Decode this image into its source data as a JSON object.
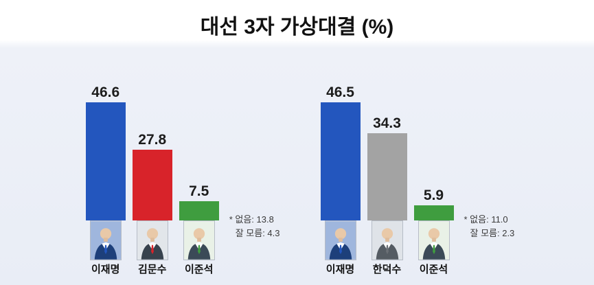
{
  "title": "대선 3자 가상대결 (%)",
  "chart_data": [
    {
      "type": "bar",
      "title": "대선 3자 가상대결 (%)",
      "categories": [
        "이재명",
        "김문수",
        "이준석"
      ],
      "values": [
        46.6,
        27.8,
        7.5
      ],
      "colors": [
        "#2356be",
        "#d8232a",
        "#3f9d3f"
      ],
      "ylim": [
        0,
        50
      ],
      "grid": false,
      "legend": "none",
      "notes": [
        "* 없음: 13.8",
        "잘 모름: 4.3"
      ],
      "photos": [
        {
          "bg": "#9fb6dd",
          "suit": "#1d3f7a",
          "accent": "#2356be"
        },
        {
          "bg": "#e2e6ea",
          "suit": "#37424d",
          "accent": "#d8232a"
        },
        {
          "bg": "#e9f1e7",
          "suit": "#3b4a57",
          "accent": "#3f9d3f"
        }
      ]
    },
    {
      "type": "bar",
      "categories": [
        "이재명",
        "한덕수",
        "이준석"
      ],
      "values": [
        46.5,
        34.3,
        5.9
      ],
      "colors": [
        "#2356be",
        "#a3a3a3",
        "#3f9d3f"
      ],
      "ylim": [
        0,
        50
      ],
      "grid": false,
      "legend": "none",
      "notes": [
        "* 없음: 11.0",
        "잘 모름: 2.3"
      ],
      "photos": [
        {
          "bg": "#9fb6dd",
          "suit": "#1d3f7a",
          "accent": "#2356be"
        },
        {
          "bg": "#dfe3e8",
          "suit": "#555c63",
          "accent": "#6b7076"
        },
        {
          "bg": "#e9f1e7",
          "suit": "#3b4a57",
          "accent": "#3f9d3f"
        }
      ]
    }
  ]
}
